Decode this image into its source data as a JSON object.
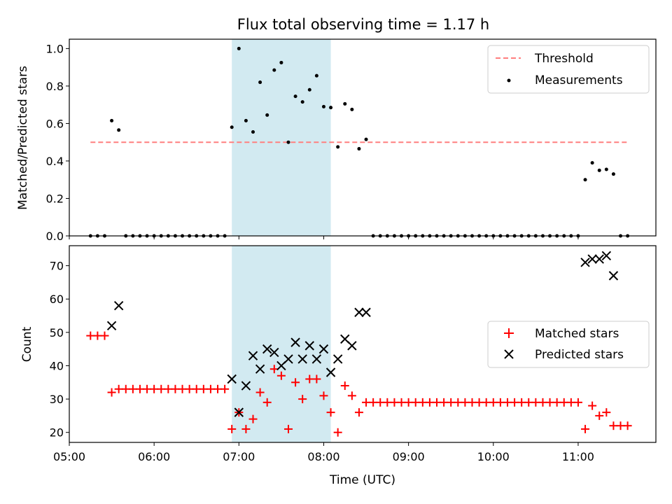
{
  "chart_data": [
    {
      "type": "scatter",
      "title": "Flux total observing time = 1.17 h",
      "xlabel": "",
      "ylabel": "Matched/Predicted stars",
      "xlim": [
        "05:00",
        "11:55"
      ],
      "ylim": [
        0.0,
        1.05
      ],
      "yticks": [
        0.0,
        0.2,
        0.4,
        0.6,
        0.8,
        1.0
      ],
      "ytick_labels": [
        "0.0",
        "0.2",
        "0.4",
        "0.6",
        "0.8",
        "1.0"
      ],
      "xticks": [
        "05:00",
        "06:00",
        "07:00",
        "08:00",
        "09:00",
        "10:00",
        "11:00"
      ],
      "grid": false,
      "legend_position": "top-right",
      "shaded_region": {
        "x_start": "06:55",
        "x_end": "08:05",
        "color": "#add8e6"
      },
      "series": [
        {
          "name": "Threshold",
          "style": "dashed-line",
          "color": "#ff7f7f",
          "x": [
            "05:15",
            "11:35"
          ],
          "y": [
            0.5,
            0.5
          ]
        },
        {
          "name": "Measurements",
          "style": "dot",
          "color": "#000000",
          "x": [
            "05:15",
            "05:20",
            "05:25",
            "05:30",
            "05:35",
            "05:40",
            "05:45",
            "05:50",
            "05:55",
            "06:00",
            "06:05",
            "06:10",
            "06:15",
            "06:20",
            "06:25",
            "06:30",
            "06:35",
            "06:40",
            "06:45",
            "06:50",
            "06:55",
            "07:00",
            "07:05",
            "07:10",
            "07:15",
            "07:20",
            "07:25",
            "07:30",
            "07:35",
            "07:40",
            "07:45",
            "07:50",
            "07:55",
            "08:00",
            "08:05",
            "08:10",
            "08:15",
            "08:20",
            "08:25",
            "08:30",
            "08:35",
            "08:40",
            "08:45",
            "08:50",
            "08:55",
            "09:00",
            "09:05",
            "09:10",
            "09:15",
            "09:20",
            "09:25",
            "09:30",
            "09:35",
            "09:40",
            "09:45",
            "09:50",
            "09:55",
            "10:00",
            "10:05",
            "10:10",
            "10:15",
            "10:20",
            "10:25",
            "10:30",
            "10:35",
            "10:40",
            "10:45",
            "10:50",
            "10:55",
            "11:00",
            "11:05",
            "11:10",
            "11:15",
            "11:20",
            "11:25",
            "11:30",
            "11:35"
          ],
          "y": [
            0,
            0,
            0,
            0.615,
            0.565,
            0,
            0,
            0,
            0,
            0,
            0,
            0,
            0,
            0,
            0,
            0,
            0,
            0,
            0,
            0,
            0.58,
            1.0,
            0.615,
            0.555,
            0.82,
            0.645,
            0.885,
            0.925,
            0.5,
            0.745,
            0.715,
            0.78,
            0.855,
            0.69,
            0.685,
            0.475,
            0.705,
            0.675,
            0.465,
            0.515,
            0,
            0,
            0,
            0,
            0,
            0,
            0,
            0,
            0,
            0,
            0,
            0,
            0,
            0,
            0,
            0,
            0,
            0,
            0,
            0,
            0,
            0,
            0,
            0,
            0,
            0,
            0,
            0,
            0,
            0,
            0.3,
            0.39,
            0.35,
            0.355,
            0.33,
            0,
            0
          ]
        }
      ]
    },
    {
      "type": "scatter",
      "title": "",
      "xlabel": "Time (UTC)",
      "ylabel": "Count",
      "xlim": [
        "05:00",
        "11:55"
      ],
      "ylim": [
        17,
        76
      ],
      "yticks": [
        20,
        30,
        40,
        50,
        60,
        70
      ],
      "ytick_labels": [
        "20",
        "30",
        "40",
        "50",
        "60",
        "70"
      ],
      "xticks": [
        "05:00",
        "06:00",
        "07:00",
        "08:00",
        "09:00",
        "10:00",
        "11:00"
      ],
      "xtick_labels": [
        "05:00",
        "06:00",
        "07:00",
        "08:00",
        "09:00",
        "10:00",
        "11:00"
      ],
      "grid": false,
      "legend_position": "center-right",
      "shaded_region": {
        "x_start": "06:55",
        "x_end": "08:05",
        "color": "#add8e6"
      },
      "series": [
        {
          "name": "Matched stars",
          "style": "plus",
          "color": "#ff0000",
          "x": [
            "05:15",
            "05:20",
            "05:25",
            "05:30",
            "05:35",
            "05:40",
            "05:45",
            "05:50",
            "05:55",
            "06:00",
            "06:05",
            "06:10",
            "06:15",
            "06:20",
            "06:25",
            "06:30",
            "06:35",
            "06:40",
            "06:45",
            "06:50",
            "06:55",
            "07:00",
            "07:05",
            "07:10",
            "07:15",
            "07:20",
            "07:25",
            "07:30",
            "07:35",
            "07:40",
            "07:45",
            "07:50",
            "07:55",
            "08:00",
            "08:05",
            "08:10",
            "08:15",
            "08:20",
            "08:25",
            "08:30",
            "08:35",
            "08:40",
            "08:45",
            "08:50",
            "08:55",
            "09:00",
            "09:05",
            "09:10",
            "09:15",
            "09:20",
            "09:25",
            "09:30",
            "09:35",
            "09:40",
            "09:45",
            "09:50",
            "09:55",
            "10:00",
            "10:05",
            "10:10",
            "10:15",
            "10:20",
            "10:25",
            "10:30",
            "10:35",
            "10:40",
            "10:45",
            "10:50",
            "10:55",
            "11:00",
            "11:05",
            "11:10",
            "11:15",
            "11:20",
            "11:25",
            "11:30",
            "11:35"
          ],
          "y": [
            49,
            49,
            49,
            32,
            33,
            33,
            33,
            33,
            33,
            33,
            33,
            33,
            33,
            33,
            33,
            33,
            33,
            33,
            33,
            33,
            21,
            26,
            21,
            24,
            32,
            29,
            39,
            37,
            21,
            35,
            30,
            36,
            36,
            31,
            26,
            20,
            34,
            31,
            26,
            29,
            29,
            29,
            29,
            29,
            29,
            29,
            29,
            29,
            29,
            29,
            29,
            29,
            29,
            29,
            29,
            29,
            29,
            29,
            29,
            29,
            29,
            29,
            29,
            29,
            29,
            29,
            29,
            29,
            29,
            29,
            21,
            28,
            25,
            26,
            22,
            22,
            22
          ]
        },
        {
          "name": "Predicted stars",
          "style": "x",
          "color": "#000000",
          "x": [
            "05:30",
            "05:35",
            "06:55",
            "07:00",
            "07:05",
            "07:10",
            "07:15",
            "07:20",
            "07:25",
            "07:30",
            "07:35",
            "07:40",
            "07:45",
            "07:50",
            "07:55",
            "08:00",
            "08:05",
            "08:10",
            "08:15",
            "08:20",
            "08:25",
            "08:30",
            "11:05",
            "11:10",
            "11:15",
            "11:20",
            "11:25"
          ],
          "y": [
            52,
            58,
            36,
            26,
            34,
            43,
            39,
            45,
            44,
            40,
            42,
            47,
            42,
            46,
            42,
            45,
            38,
            42,
            48,
            46,
            56,
            56,
            71,
            72,
            72,
            73,
            67
          ]
        }
      ]
    }
  ]
}
